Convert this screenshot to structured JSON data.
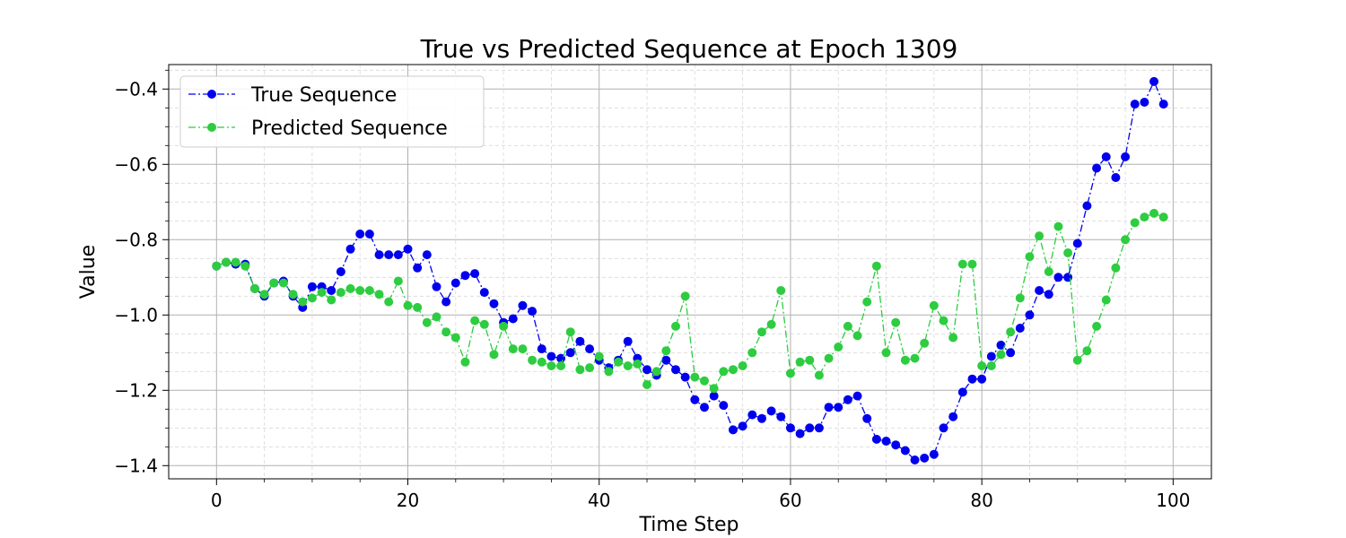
{
  "chart_data": {
    "type": "line",
    "title": "True vs Predicted Sequence at Epoch 1309",
    "xlabel": "Time Step",
    "ylabel": "Value",
    "xlim": [
      -5,
      104
    ],
    "ylim": [
      -1.435,
      -0.335
    ],
    "x_ticks": [
      0,
      20,
      40,
      60,
      80,
      100
    ],
    "y_ticks": [
      -1.4,
      -1.2,
      -1.0,
      -0.8,
      -0.6,
      -0.4
    ],
    "x_tick_labels": [
      "0",
      "20",
      "40",
      "60",
      "80",
      "100"
    ],
    "y_tick_labels": [
      "−1.4",
      "−1.2",
      "−1.0",
      "−0.8",
      "−0.6",
      "−0.4"
    ],
    "grid": true,
    "minor_grid": true,
    "legend_position": "upper-left",
    "series": [
      {
        "name": "True Sequence",
        "color": "#0000ee",
        "line_style": "dash-dot",
        "marker": "circle",
        "values": [
          -0.87,
          -0.86,
          -0.865,
          -0.865,
          -0.93,
          -0.95,
          -0.915,
          -0.91,
          -0.95,
          -0.98,
          -0.925,
          -0.925,
          -0.935,
          -0.885,
          -0.825,
          -0.785,
          -0.785,
          -0.84,
          -0.84,
          -0.84,
          -0.825,
          -0.875,
          -0.84,
          -0.925,
          -0.965,
          -0.915,
          -0.895,
          -0.89,
          -0.94,
          -0.97,
          -1.02,
          -1.01,
          -0.975,
          -0.99,
          -1.09,
          -1.11,
          -1.115,
          -1.1,
          -1.07,
          -1.09,
          -1.12,
          -1.14,
          -1.12,
          -1.07,
          -1.115,
          -1.145,
          -1.16,
          -1.12,
          -1.145,
          -1.165,
          -1.225,
          -1.245,
          -1.215,
          -1.24,
          -1.305,
          -1.295,
          -1.265,
          -1.275,
          -1.255,
          -1.27,
          -1.3,
          -1.315,
          -1.3,
          -1.3,
          -1.245,
          -1.245,
          -1.225,
          -1.215,
          -1.275,
          -1.33,
          -1.335,
          -1.345,
          -1.36,
          -1.385,
          -1.38,
          -1.37,
          -1.3,
          -1.27,
          -1.205,
          -1.17,
          -1.17,
          -1.11,
          -1.08,
          -1.1,
          -1.035,
          -1.0,
          -0.935,
          -0.945,
          -0.9,
          -0.9,
          -0.81,
          -0.71,
          -0.61,
          -0.58,
          -0.635,
          -0.58,
          -0.44,
          -0.435,
          -0.38,
          -0.44
        ]
      },
      {
        "name": "Predicted Sequence",
        "color": "#2ecc40",
        "line_style": "dash-dot",
        "marker": "circle",
        "values": [
          -0.87,
          -0.86,
          -0.86,
          -0.87,
          -0.93,
          -0.945,
          -0.915,
          -0.915,
          -0.945,
          -0.965,
          -0.955,
          -0.94,
          -0.96,
          -0.94,
          -0.93,
          -0.935,
          -0.935,
          -0.945,
          -0.965,
          -0.91,
          -0.975,
          -0.98,
          -1.02,
          -1.005,
          -1.045,
          -1.06,
          -1.125,
          -1.015,
          -1.025,
          -1.105,
          -1.03,
          -1.09,
          -1.09,
          -1.12,
          -1.125,
          -1.135,
          -1.135,
          -1.045,
          -1.145,
          -1.14,
          -1.11,
          -1.15,
          -1.125,
          -1.135,
          -1.13,
          -1.185,
          -1.15,
          -1.095,
          -1.03,
          -0.95,
          -1.165,
          -1.175,
          -1.195,
          -1.15,
          -1.145,
          -1.135,
          -1.1,
          -1.045,
          -1.025,
          -0.935,
          -1.155,
          -1.125,
          -1.12,
          -1.16,
          -1.115,
          -1.085,
          -1.03,
          -1.055,
          -0.965,
          -0.87,
          -1.1,
          -1.02,
          -1.12,
          -1.115,
          -1.075,
          -0.975,
          -1.015,
          -1.06,
          -0.865,
          -0.865,
          -1.135,
          -1.135,
          -1.105,
          -1.045,
          -0.955,
          -0.845,
          -0.79,
          -0.885,
          -0.765,
          -0.835,
          -1.12,
          -1.095,
          -1.03,
          -0.96,
          -0.875,
          -0.8,
          -0.755,
          -0.74,
          -0.73,
          -0.74
        ]
      }
    ]
  }
}
